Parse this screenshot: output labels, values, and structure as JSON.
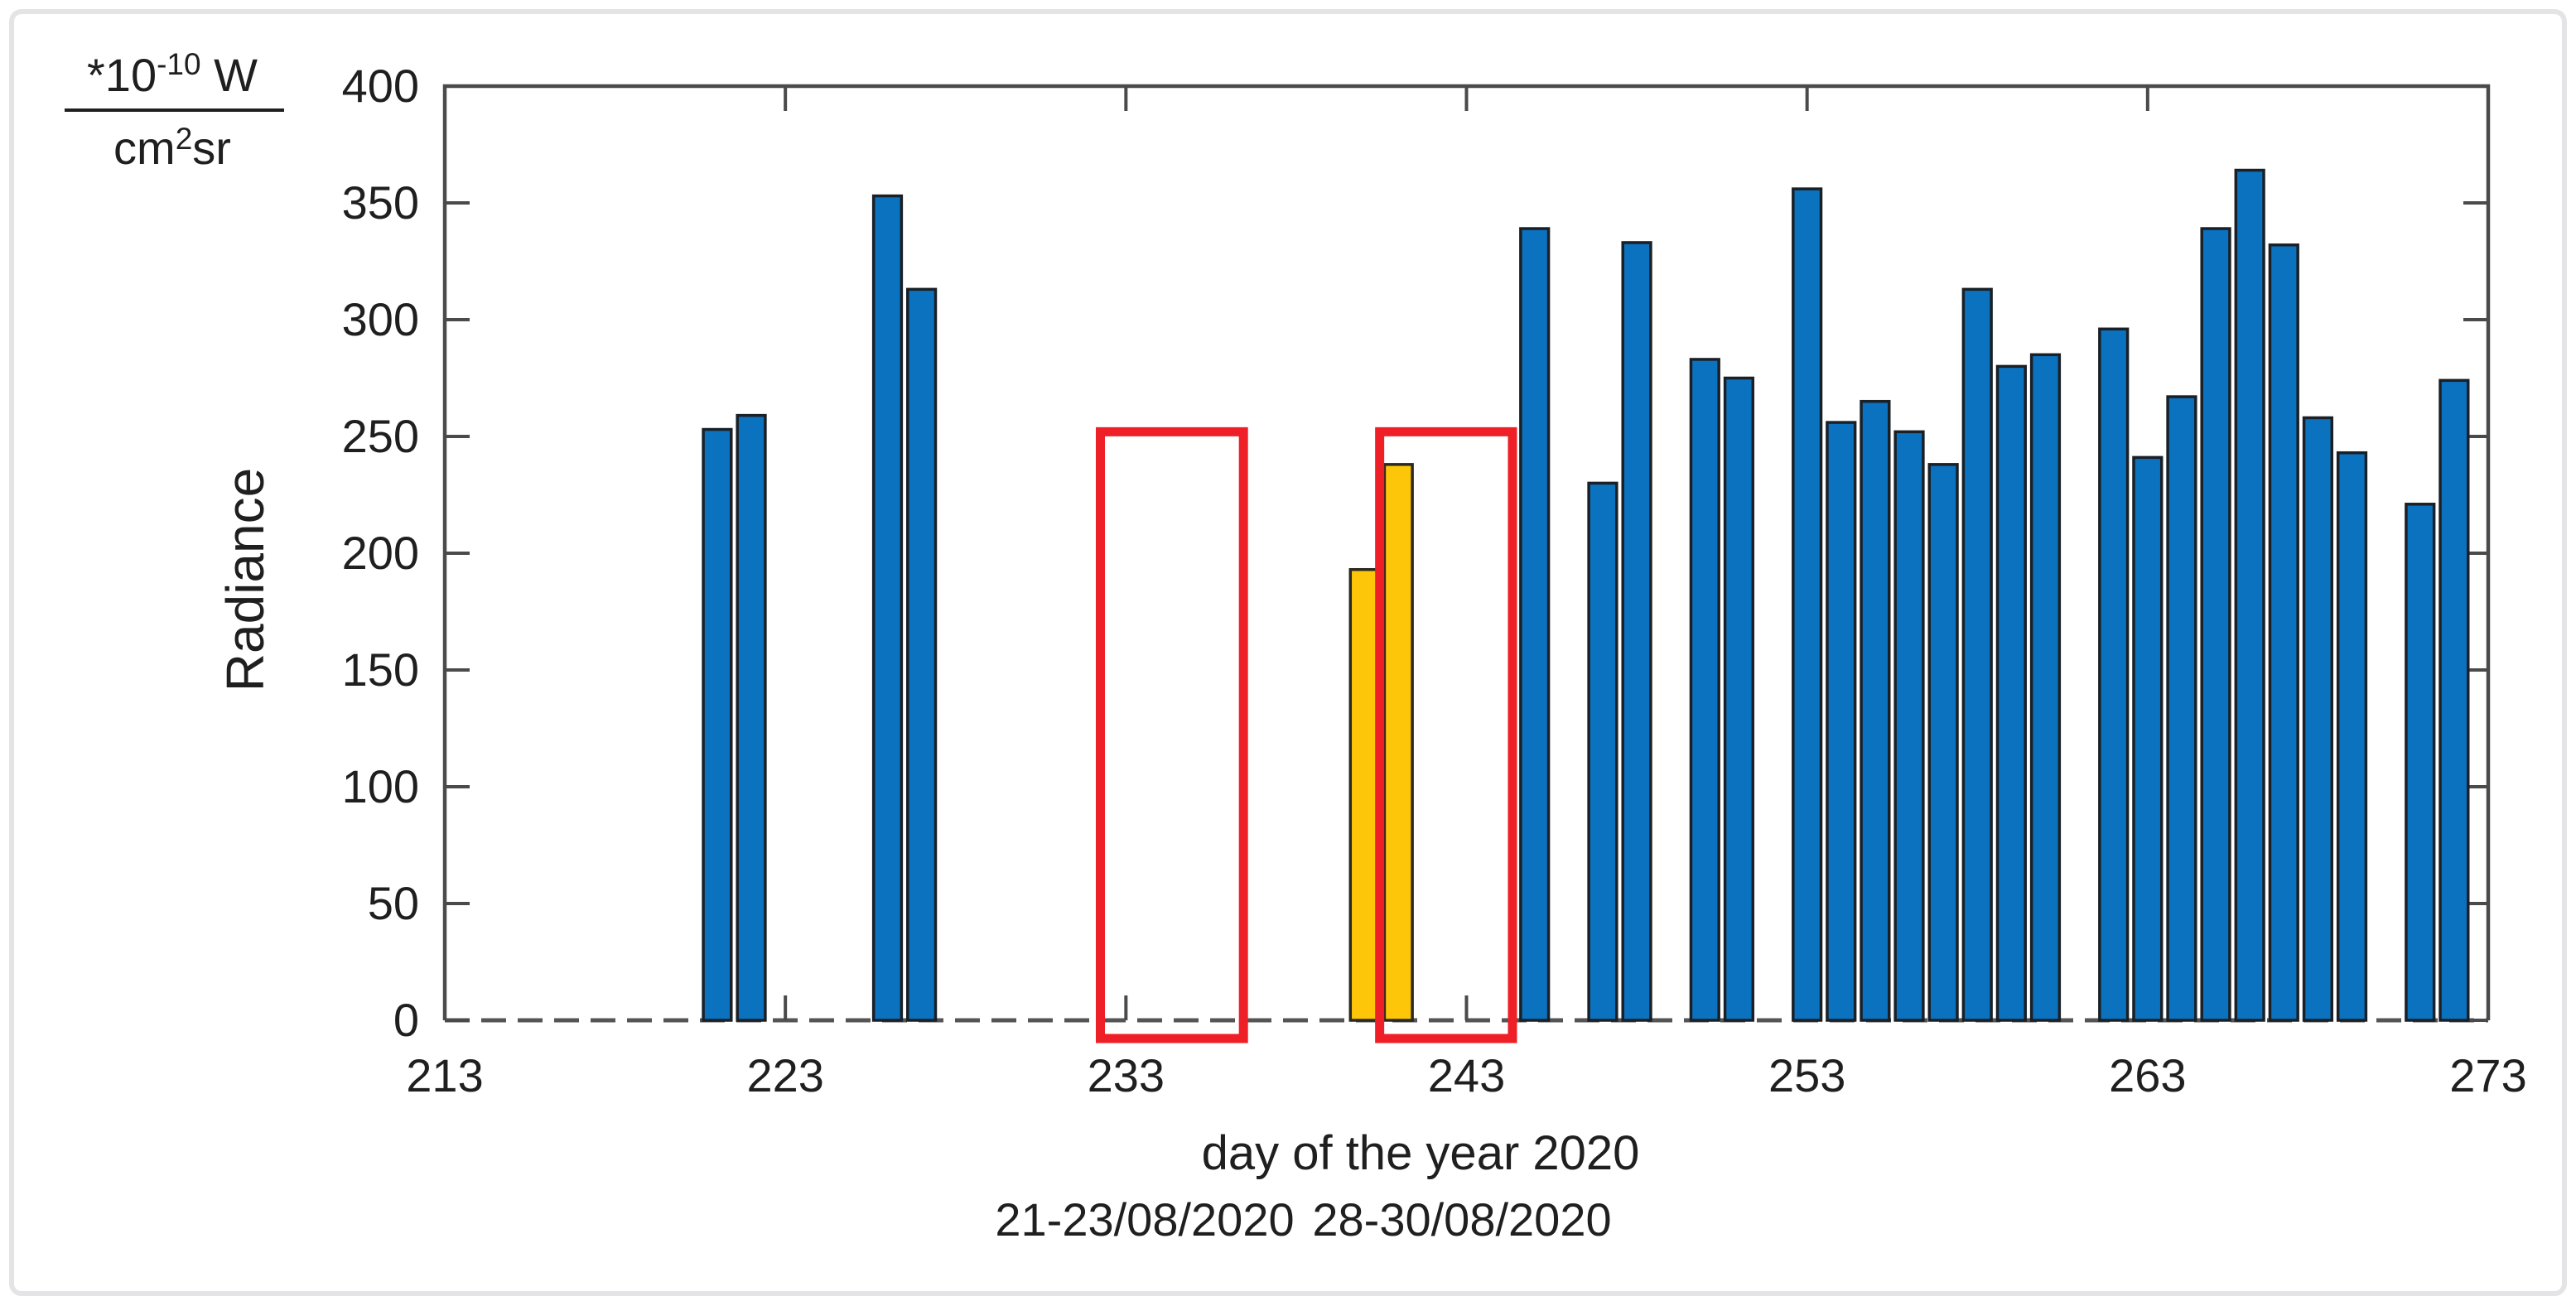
{
  "figure": {
    "background": "#ffffff",
    "border_color": "#e4e4e6"
  },
  "chart_data": {
    "type": "bar",
    "title": "",
    "xlabel": "day of the year 2020",
    "ylabel": "Radiance",
    "y_unit": {
      "numerator_base": "*10",
      "numerator_sup": "-10",
      "numerator_tail": " W",
      "denominator_base": "cm",
      "denominator_sup": "2",
      "denominator_tail": "sr"
    },
    "xlim": [
      213,
      273
    ],
    "ylim": [
      0,
      400
    ],
    "x_ticks": [
      213,
      223,
      233,
      243,
      253,
      263,
      273
    ],
    "y_ticks": [
      0,
      50,
      100,
      150,
      200,
      250,
      300,
      350,
      400
    ],
    "grid": false,
    "legend": "none",
    "bar_width_days": 0.82,
    "categories_note": "x = day of the year 2020",
    "points": [
      {
        "day": 221,
        "value": 253
      },
      {
        "day": 222,
        "value": 259
      },
      {
        "day": 226,
        "value": 353
      },
      {
        "day": 227,
        "value": 313
      },
      {
        "day": 240,
        "value": 193,
        "highlight": true
      },
      {
        "day": 241,
        "value": 238,
        "highlight": true
      },
      {
        "day": 245,
        "value": 339
      },
      {
        "day": 247,
        "value": 230
      },
      {
        "day": 248,
        "value": 333
      },
      {
        "day": 250,
        "value": 283
      },
      {
        "day": 251,
        "value": 275
      },
      {
        "day": 253,
        "value": 356
      },
      {
        "day": 254,
        "value": 256
      },
      {
        "day": 255,
        "value": 265
      },
      {
        "day": 256,
        "value": 252
      },
      {
        "day": 257,
        "value": 238
      },
      {
        "day": 258,
        "value": 313
      },
      {
        "day": 259,
        "value": 280
      },
      {
        "day": 260,
        "value": 285
      },
      {
        "day": 262,
        "value": 296
      },
      {
        "day": 263,
        "value": 241
      },
      {
        "day": 264,
        "value": 267
      },
      {
        "day": 265,
        "value": 339
      },
      {
        "day": 266,
        "value": 364
      },
      {
        "day": 267,
        "value": 332
      },
      {
        "day": 268,
        "value": 258
      },
      {
        "day": 269,
        "value": 243
      },
      {
        "day": 271,
        "value": 221
      },
      {
        "day": 272,
        "value": 274
      }
    ],
    "highlight_rects": [
      {
        "day_start": 232.25,
        "day_end": 236.45,
        "value_top": 252,
        "meaning": "missing days 21-23/08/2020"
      },
      {
        "day_start": 240.45,
        "day_end": 244.35,
        "value_top": 252,
        "meaning": "days 28-30/08/2020"
      }
    ],
    "annotations": [
      {
        "text": "21-23/08/2020",
        "day_center": 233.55
      },
      {
        "text": "28-30/08/2020",
        "day_center": 242.87
      }
    ],
    "colors": {
      "bar_fill": "#0b72c0",
      "bar_edge": "#1a2026",
      "highlight_fill": "#fdc608",
      "highlight_edge": "#2a2a20",
      "rect_stroke": "#ee1f27",
      "axis": "#4a4a4a",
      "baseline_dash": "#555555",
      "text": "#1f1f1f"
    }
  }
}
